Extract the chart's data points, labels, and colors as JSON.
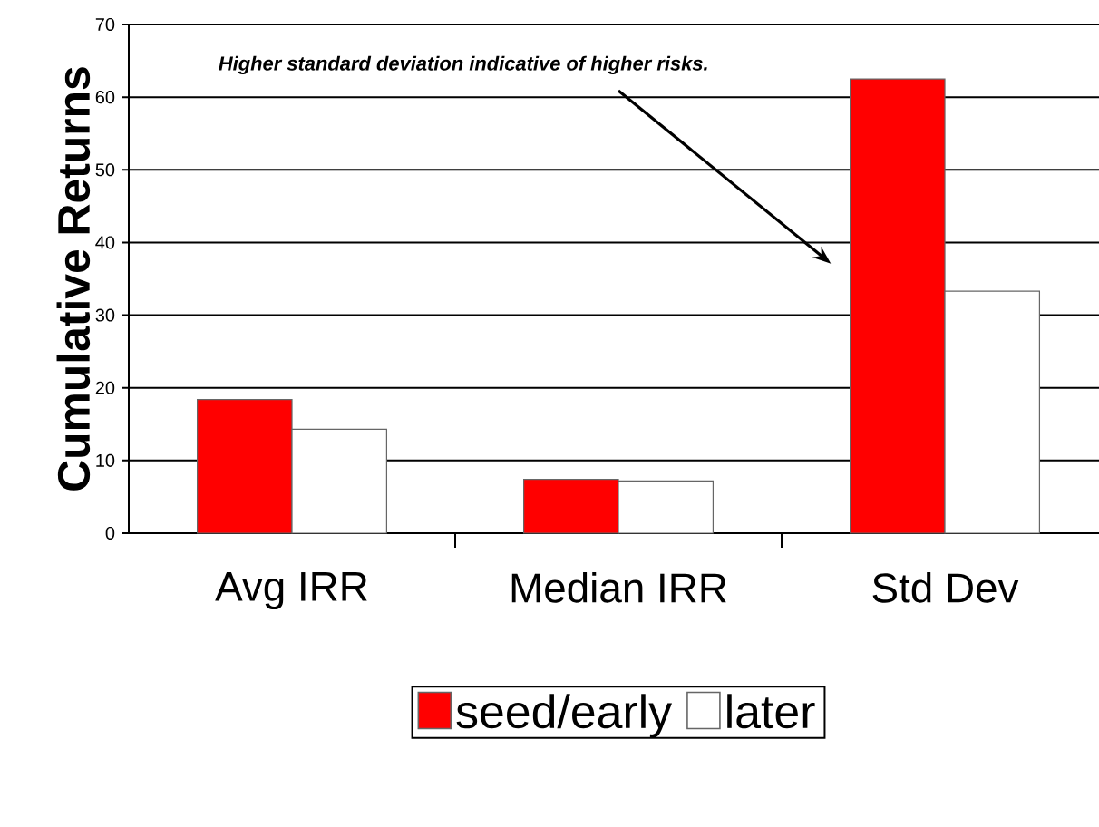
{
  "chart_data": {
    "type": "bar",
    "ylabel": "Cumulative Returns",
    "categories": [
      "Avg IRR",
      "Median IRR",
      "Std Dev"
    ],
    "series": [
      {
        "name": "seed/early",
        "color": "#ff0000",
        "values": [
          18.4,
          7.4,
          62.5
        ]
      },
      {
        "name": "later",
        "color": "#ffffff",
        "values": [
          14.3,
          7.2,
          33.3
        ]
      }
    ],
    "ylim": [
      0,
      70
    ],
    "yticks": [
      0,
      10,
      20,
      30,
      40,
      50,
      60,
      70
    ],
    "grid": "y",
    "legend": "bottom",
    "annotations": [
      "Higher standard deviation indicative of higher risks."
    ]
  }
}
